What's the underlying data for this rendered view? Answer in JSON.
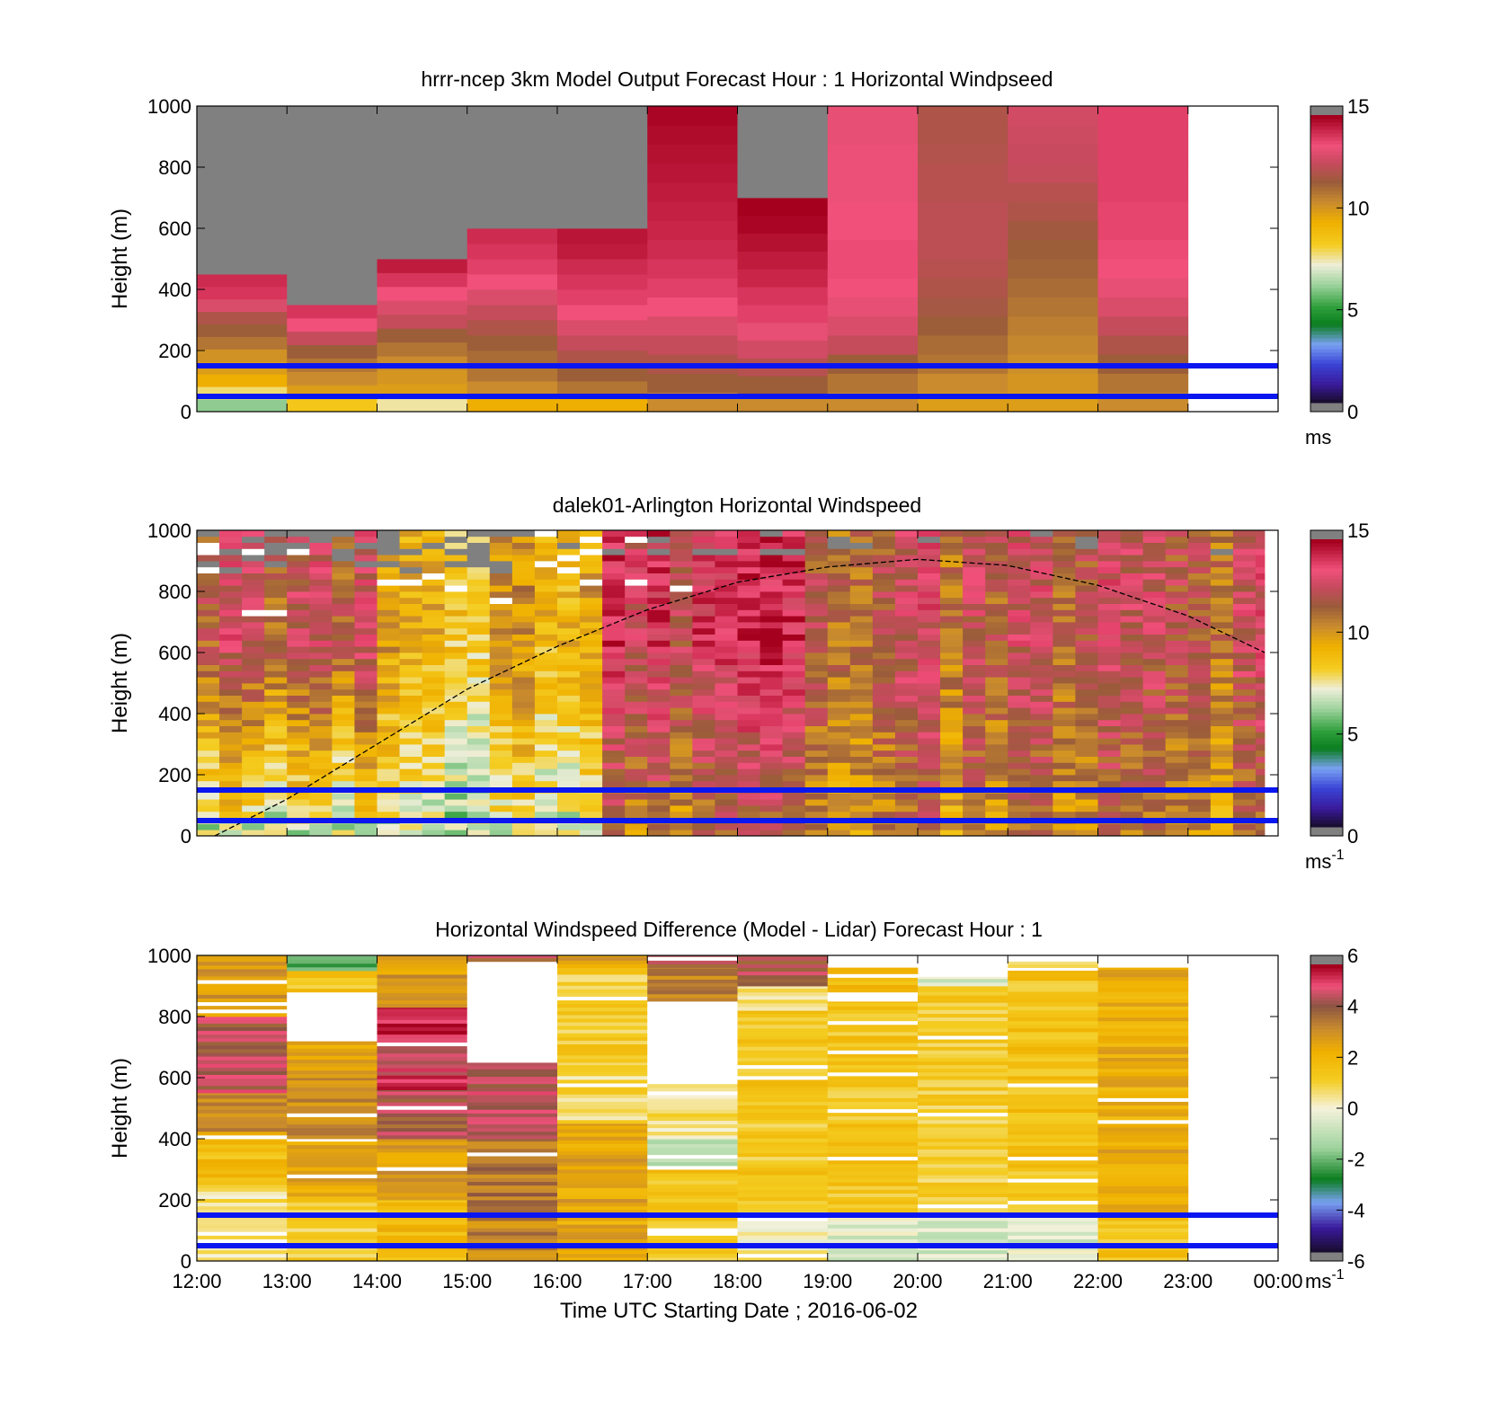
{
  "chart_data": [
    {
      "type": "heatmap",
      "title": "hrrr-ncep 3km Model Output   Forecast Hour : 1 Horizontal Windpseed",
      "ylabel": "Height (m)",
      "xlabel": "",
      "ylim": [
        0,
        1000
      ],
      "yticks": [
        "0",
        "200",
        "400",
        "600",
        "800",
        "1000"
      ],
      "xlim_hours": [
        12,
        24
      ],
      "colorbar": {
        "min": 0,
        "max": 15,
        "ticks": [
          "0",
          "5",
          "10",
          "15"
        ],
        "unit": "ms",
        "unit_sup": ""
      },
      "reference_lines_m": [
        50,
        150
      ],
      "columns": [
        {
          "start": 12,
          "end": 13,
          "top": 450,
          "speeds": [
            6,
            7.8,
            9.5,
            10,
            10.3,
            11,
            11.5,
            12,
            13,
            14,
            14.2
          ]
        },
        {
          "start": 13,
          "end": 14,
          "top": 350,
          "speeds": [
            8.5,
            10,
            10.5,
            11,
            11.5,
            12.5,
            13.5,
            14
          ]
        },
        {
          "start": 14,
          "end": 15,
          "top": 500,
          "speeds": [
            7.5,
            10,
            10.2,
            10.5,
            11,
            11.5,
            12.5,
            13,
            13.5,
            14,
            14.5
          ]
        },
        {
          "start": 15,
          "end": 16,
          "top": 600,
          "speeds": [
            9.5,
            10.5,
            11,
            11.2,
            11.5,
            12,
            12.5,
            13,
            13.5,
            13.8,
            14,
            14.2
          ]
        },
        {
          "start": 16,
          "end": 17,
          "top": 600,
          "speeds": [
            9.5,
            11,
            11.5,
            12,
            12.5,
            13,
            13.5,
            13.8,
            14,
            14.2,
            14.5,
            14.6
          ]
        },
        {
          "start": 17,
          "end": 18,
          "top": 1000,
          "speeds": [
            10.5,
            11.5,
            12,
            12.5,
            13,
            13.5,
            13.8,
            14,
            14.2,
            14.3,
            14.4,
            14.5,
            14.6,
            14.7,
            14.8,
            14.9
          ]
        },
        {
          "start": 18,
          "end": 19,
          "top": 700,
          "speeds": [
            10.5,
            11.5,
            12.2,
            12.8,
            13.3,
            13.8,
            14,
            14.3,
            14.5,
            14.7,
            14.9,
            15
          ]
        },
        {
          "start": 19,
          "end": 20,
          "top": 1000,
          "speeds": [
            10.5,
            11,
            11.5,
            12.5,
            13,
            13.3,
            13.5,
            13.6,
            13.6,
            13.5,
            13.5,
            13.4,
            13.4,
            13.4,
            13.3,
            13.3
          ]
        },
        {
          "start": 20,
          "end": 21,
          "top": 1000,
          "speeds": [
            10,
            10.5,
            11,
            11.2,
            11.5,
            11.8,
            12,
            12.2,
            12.3,
            12.3,
            12.3,
            12.2,
            12.2,
            12.1,
            12,
            12
          ]
        },
        {
          "start": 21,
          "end": 22,
          "top": 1000,
          "speeds": [
            10,
            10.2,
            10.4,
            10.6,
            10.8,
            11,
            11.2,
            11.4,
            11.5,
            11.7,
            12,
            12.2,
            12.5,
            12.6,
            12.7,
            12.8
          ]
        },
        {
          "start": 22,
          "end": 23,
          "top": 1000,
          "speeds": [
            10.5,
            11,
            11.5,
            12,
            12.5,
            13,
            13.3,
            13.5,
            13.6,
            13.7,
            13.7,
            13.8,
            13.8,
            13.8,
            13.8,
            13.8
          ]
        }
      ],
      "missing_fill": "#808080"
    },
    {
      "type": "heatmap",
      "title": "dalek01-Arlington  Horizontal Windspeed",
      "ylabel": "Height (m)",
      "xlabel": "",
      "ylim": [
        0,
        1000
      ],
      "yticks": [
        "0",
        "200",
        "400",
        "600",
        "800",
        "1000"
      ],
      "xlim_hours": [
        12,
        24
      ],
      "colorbar": {
        "min": 0,
        "max": 15,
        "ticks": [
          "0",
          "5",
          "10",
          "15"
        ],
        "unit": "ms",
        "unit_sup": "-1"
      },
      "reference_lines_m": [
        50,
        150
      ],
      "data_end_hour": 23.85,
      "column_width_hours": 0.25,
      "profile_phases": [
        {
          "start": 12,
          "end": 14,
          "low": 7.5,
          "high": 12.5
        },
        {
          "start": 14,
          "end": 16.5,
          "low": 7,
          "high": 9.5
        },
        {
          "start": 16.5,
          "end": 18.75,
          "low": 11,
          "high": 13.5
        },
        {
          "start": 18.75,
          "end": 24,
          "low": 10.5,
          "high": 12
        }
      ],
      "pbl_curve": [
        [
          12.2,
          0
        ],
        [
          13,
          120
        ],
        [
          14,
          300
        ],
        [
          15,
          480
        ],
        [
          16,
          620
        ],
        [
          17,
          740
        ],
        [
          18,
          830
        ],
        [
          19,
          880
        ],
        [
          20,
          905
        ],
        [
          21,
          885
        ],
        [
          22,
          820
        ],
        [
          23,
          720
        ],
        [
          23.85,
          600
        ]
      ]
    },
    {
      "type": "heatmap",
      "title": "Horizontal Windspeed Difference (Model - Lidar) Forecast Hour : 1",
      "ylabel": "Height (m)",
      "xlabel": "Time UTC  Starting Date ; 2016-06-02",
      "ylim": [
        0,
        1000
      ],
      "yticks": [
        "0",
        "200",
        "400",
        "600",
        "800",
        "1000"
      ],
      "xticks": [
        "12:00",
        "13:00",
        "14:00",
        "15:00",
        "16:00",
        "17:00",
        "18:00",
        "19:00",
        "20:00",
        "21:00",
        "22:00",
        "23:00",
        "00:00"
      ],
      "xlim_hours": [
        12,
        24
      ],
      "colorbar": {
        "min": -6,
        "max": 6,
        "ticks": [
          "-6",
          "-4",
          "-2",
          "0",
          "2",
          "4",
          "6"
        ],
        "unit": "ms",
        "unit_sup": "-1"
      },
      "reference_lines_m": [
        50,
        150
      ],
      "columns": [
        {
          "start": 12,
          "end": 13,
          "top": 1000,
          "diffs": [
            [
              0,
              250,
              0.5
            ],
            [
              250,
              400,
              1.8
            ],
            [
              400,
              550,
              3.2
            ],
            [
              550,
              800,
              4.6
            ],
            [
              800,
              1000,
              3.0
            ]
          ]
        },
        {
          "start": 13,
          "end": 14,
          "top": 1000,
          "diffs": [
            [
              0,
              200,
              1.2
            ],
            [
              200,
              400,
              2.5
            ],
            [
              400,
              600,
              3.4
            ],
            [
              600,
              720,
              2.6
            ],
            [
              720,
              880,
              null
            ],
            [
              880,
              950,
              1.5
            ],
            [
              950,
              1000,
              -2.4
            ]
          ]
        },
        {
          "start": 14,
          "end": 15,
          "top": 1000,
          "diffs": [
            [
              0,
              200,
              2.0
            ],
            [
              200,
              400,
              3.0
            ],
            [
              400,
              560,
              4.4
            ],
            [
              560,
              730,
              5.2
            ],
            [
              730,
              830,
              5.4
            ],
            [
              830,
              1000,
              3.0
            ]
          ]
        },
        {
          "start": 15,
          "end": 16,
          "top": 1000,
          "diffs": [
            [
              0,
              200,
              3.5
            ],
            [
              200,
              400,
              3.8
            ],
            [
              400,
              650,
              4.6
            ],
            [
              650,
              980,
              null
            ],
            [
              980,
              1000,
              4.4
            ]
          ]
        },
        {
          "start": 16,
          "end": 17,
          "top": 1000,
          "diffs": [
            [
              0,
              450,
              2.6
            ],
            [
              450,
              650,
              0.8
            ],
            [
              650,
              960,
              1.2
            ],
            [
              960,
              1000,
              2.8
            ]
          ]
        },
        {
          "start": 17,
          "end": 18,
          "top": 1000,
          "diffs": [
            [
              0,
              300,
              1.5
            ],
            [
              300,
              400,
              -1.0
            ],
            [
              400,
              580,
              0.6
            ],
            [
              580,
              850,
              null
            ],
            [
              850,
              960,
              3.6
            ],
            [
              960,
              1000,
              4.4
            ]
          ]
        },
        {
          "start": 18,
          "end": 19,
          "top": 1000,
          "diffs": [
            [
              0,
              150,
              0.3
            ],
            [
              150,
              820,
              1.4
            ],
            [
              820,
              900,
              0.8
            ],
            [
              900,
              1000,
              4.6
            ]
          ]
        },
        {
          "start": 19,
          "end": 20,
          "top": 1000,
          "diffs": [
            [
              0,
              150,
              -0.5
            ],
            [
              150,
              850,
              1.5
            ],
            [
              850,
              880,
              null
            ],
            [
              880,
              960,
              1.8
            ]
          ]
        },
        {
          "start": 20,
          "end": 21,
          "top": 1000,
          "diffs": [
            [
              0,
              150,
              -0.6
            ],
            [
              150,
              900,
              1.2
            ],
            [
              900,
              930,
              -0.4
            ]
          ]
        },
        {
          "start": 21,
          "end": 22,
          "top": 1000,
          "diffs": [
            [
              0,
              150,
              -0.5
            ],
            [
              150,
              950,
              1.6
            ],
            [
              960,
              980,
              1.2
            ]
          ]
        },
        {
          "start": 22,
          "end": 23,
          "top": 1000,
          "diffs": [
            [
              0,
              150,
              1.5
            ],
            [
              150,
              960,
              2.4
            ]
          ]
        }
      ]
    }
  ]
}
